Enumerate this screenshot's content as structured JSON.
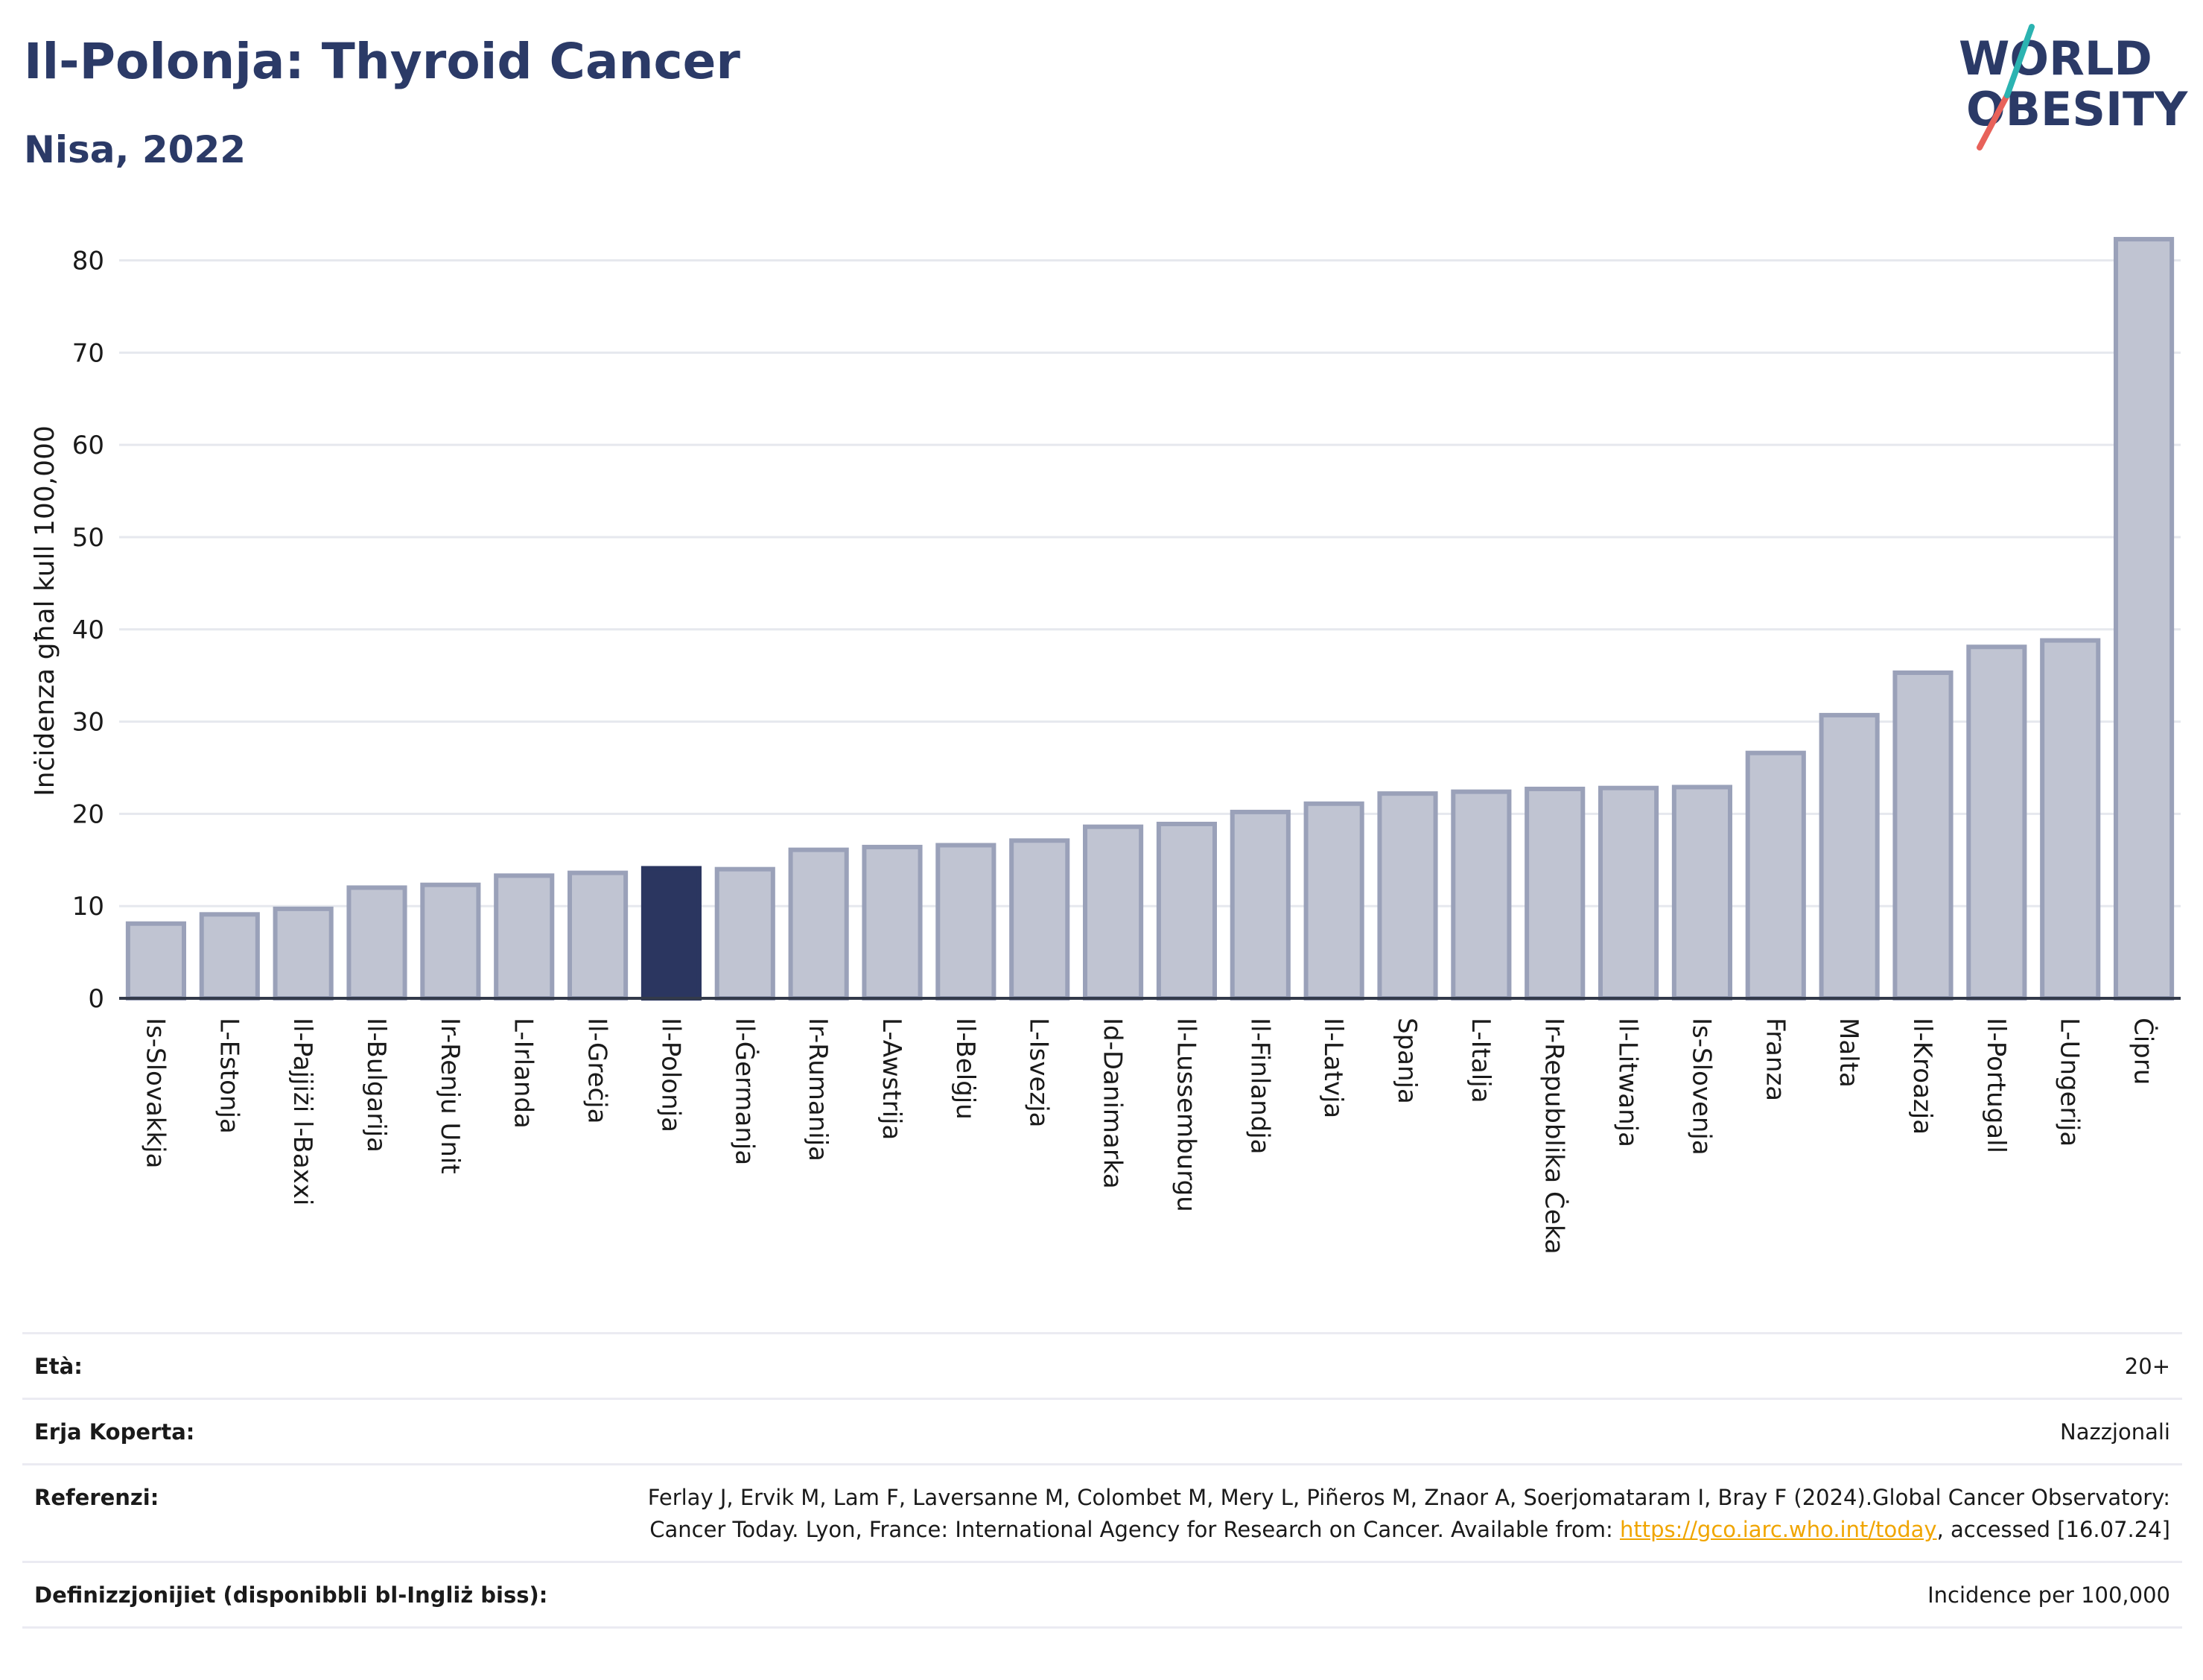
{
  "header": {
    "title": "Il-Polonja: Thyroid Cancer",
    "subtitle": "Nisa, 2022"
  },
  "logo": {
    "line1": "WORLD",
    "line2": "OBESITY",
    "colors": [
      "#2b3a67",
      "#e8625a",
      "#2bb3b1"
    ]
  },
  "chart_data": {
    "type": "bar",
    "ylabel": "Inċidenza għal kull 100,000",
    "ylim": [
      0,
      84
    ],
    "yticks": [
      0,
      10,
      20,
      30,
      40,
      50,
      60,
      70,
      80
    ],
    "grid": true,
    "highlight": "Il-Polonja",
    "colors": {
      "bar": "#c0c4d2",
      "bar_border": "#9aa1b9",
      "highlight": "#2b3660",
      "grid": "#e6e8ee",
      "axis": "#333a4a"
    },
    "categories": [
      "Is-Slovakkja",
      "L-Estonja",
      "Il-Pajjiżi l-Baxxi",
      "Il-Bulgarija",
      "Ir-Renju Unit",
      "L-Irlanda",
      "Il-Greċja",
      "Il-Polonja",
      "Il-Ġermanja",
      "Ir-Rumanija",
      "L-Awstrija",
      "Il-Belġju",
      "L-Isvezja",
      "Id-Danimarka",
      "Il-Lussemburgu",
      "Il-Finlandja",
      "Il-Latvja",
      "Spanja",
      "L-Italja",
      "Ir-Repubblika Ċeka",
      "Il-Litwanja",
      "Is-Slovenja",
      "Franza",
      "Malta",
      "Il-Kroazja",
      "Il-Portugall",
      "L-Ungerija",
      "Ċipru"
    ],
    "values": [
      8.1,
      9.1,
      9.7,
      12.0,
      12.3,
      13.3,
      13.6,
      14.1,
      14.0,
      16.1,
      16.4,
      16.6,
      17.1,
      18.6,
      18.9,
      20.2,
      21.1,
      22.2,
      22.4,
      22.7,
      22.8,
      22.9,
      26.6,
      30.7,
      35.3,
      38.1,
      38.8,
      82.3
    ]
  },
  "info": {
    "age_label": "Età:",
    "age_value": "20+",
    "coverage_label": "Erja Koperta:",
    "coverage_value": "Nazzjonali",
    "ref_label": "Referenzi:",
    "ref_text1": "Ferlay J, Ervik M, Lam F, Laversanne M, Colombet M, Mery L, Piñeros M, Znaor A, Soerjomataram I, Bray F (2024).Global Cancer Observatory: Cancer Today. Lyon, France: International Agency for Research on Cancer. Available from: ",
    "ref_link": "https://gco.iarc.who.int/today",
    "ref_text2": ", accessed [16.07.24]",
    "def_label": "Definizzjonijiet (disponibbli bl-Ingliż biss):",
    "def_value": "Incidence per 100,000"
  }
}
